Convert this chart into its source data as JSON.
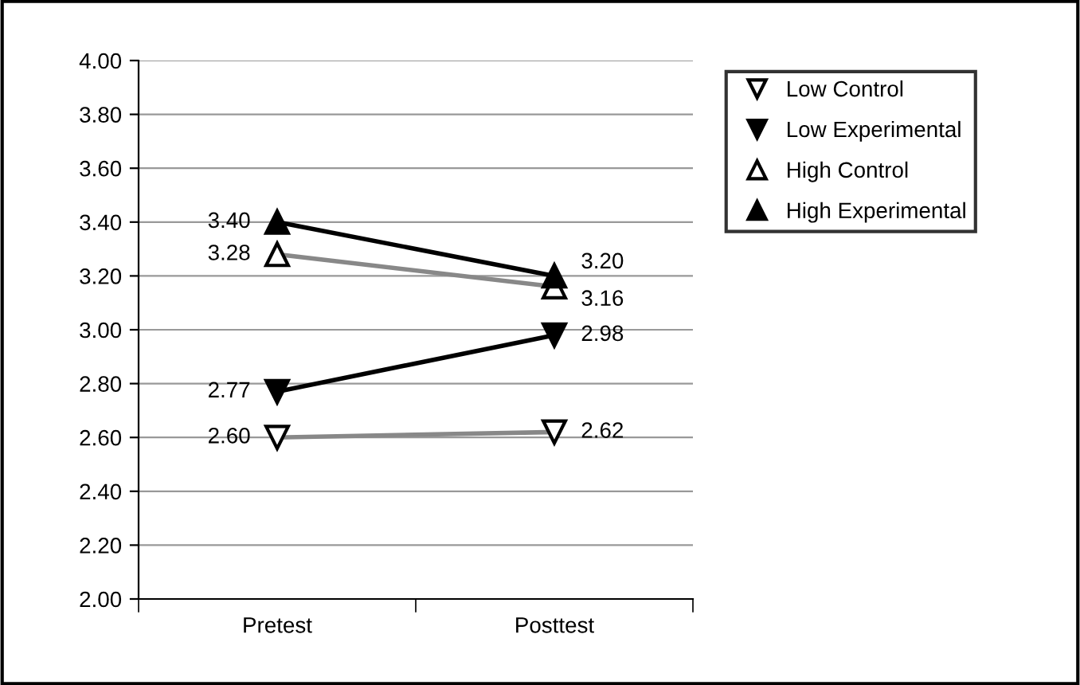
{
  "chart_data": {
    "type": "line",
    "categories": [
      "Pretest",
      "Posttest"
    ],
    "series": [
      {
        "name": "Low Control",
        "color": "#888888",
        "marker": "triangle_down",
        "values": [
          2.6,
          2.62
        ],
        "value_labels": [
          "2.60",
          "2.62"
        ]
      },
      {
        "name": "Low Experimental",
        "color": "#000000",
        "marker": "triangle_down",
        "values": [
          2.77,
          2.98
        ],
        "value_labels": [
          "2.77",
          "2.98"
        ]
      },
      {
        "name": "High Control",
        "color": "#888888",
        "marker": "triangle",
        "values": [
          3.28,
          3.16
        ],
        "value_labels": [
          "3.28",
          "3.16"
        ]
      },
      {
        "name": "High Experimental",
        "color": "#000000",
        "marker": "triangle",
        "values": [
          3.4,
          3.2
        ],
        "value_labels": [
          "3.40",
          "3.20"
        ]
      }
    ],
    "ylim": [
      2.0,
      4.0
    ],
    "yticks": [
      {
        "value": 2.0,
        "label": "2.00"
      },
      {
        "value": 2.2,
        "label": "2.20"
      },
      {
        "value": 2.4,
        "label": "2.40"
      },
      {
        "value": 2.6,
        "label": "2.60"
      },
      {
        "value": 2.8,
        "label": "2.80"
      },
      {
        "value": 3.0,
        "label": "3.00"
      },
      {
        "value": 3.2,
        "label": "3.20"
      },
      {
        "value": 3.4,
        "label": "3.40"
      },
      {
        "value": 3.6,
        "label": "3.60"
      },
      {
        "value": 3.8,
        "label": "3.80"
      },
      {
        "value": 4.0,
        "label": "4.00"
      }
    ],
    "grid": "y",
    "legend": "top right",
    "line_style": "solid"
  }
}
